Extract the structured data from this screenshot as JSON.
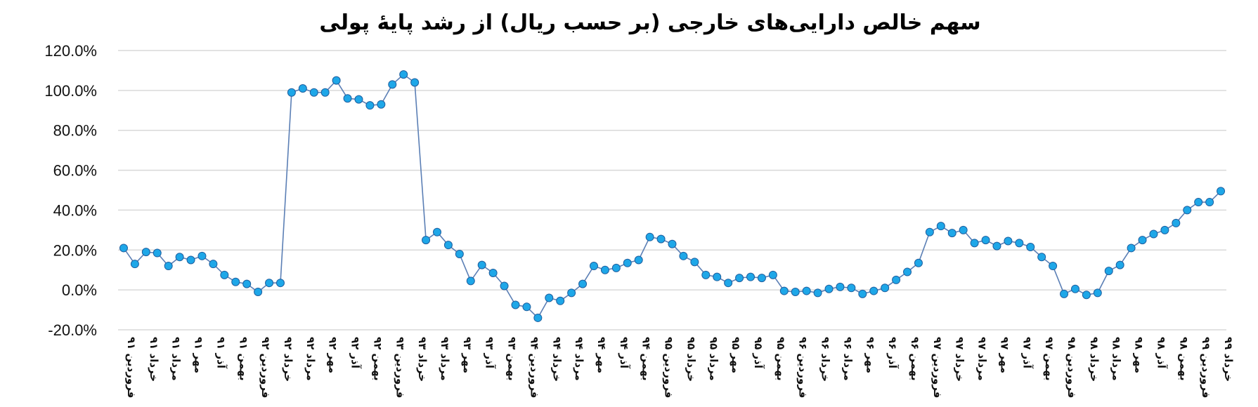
{
  "chart_data": {
    "type": "line",
    "title": "سهم خالص دارایی‌های خارجی (بر حسب ریال) از رشد پایهٔ پولی",
    "xlabel": "",
    "ylabel": "",
    "ylim": [
      -20,
      120
    ],
    "y_ticks": [
      "120.0%",
      "100.0%",
      "80.0%",
      "60.0%",
      "40.0%",
      "20.0%",
      "0.0%",
      "-20.0%"
    ],
    "y_tick_values": [
      120,
      100,
      80,
      60,
      40,
      20,
      0,
      -20
    ],
    "grid": true,
    "legend": "none",
    "colors": {
      "line": "#5b7fb5",
      "marker": "#1ea7e8",
      "grid": "#d9d9d9"
    },
    "x": [
      "فروردین ۹۱",
      "",
      "خرداد ۹۱",
      "",
      "مرداد ۹۱",
      "",
      "مهر ۹۱",
      "",
      "آذر ۹۱",
      "",
      "بهمن ۹۱",
      "",
      "فروردین ۹۲",
      "",
      "خرداد ۹۲",
      "",
      "مرداد ۹۲",
      "",
      "مهر ۹۲",
      "",
      "آذر ۹۲",
      "",
      "بهمن ۹۲",
      "",
      "فروردین ۹۳",
      "",
      "خرداد ۹۳",
      "",
      "مرداد ۹۳",
      "",
      "مهر ۹۳",
      "",
      "آذر ۹۳",
      "",
      "بهمن ۹۳",
      "",
      "فروردین ۹۴",
      "",
      "خرداد ۹۴",
      "",
      "مرداد ۹۴",
      "",
      "مهر ۹۴",
      "",
      "آذر ۹۴",
      "",
      "بهمن ۹۴",
      "",
      "فروردین ۹۵",
      "",
      "خرداد ۹۵",
      "",
      "مرداد ۹۵",
      "",
      "مهر ۹۵",
      "",
      "آذر ۹۵",
      "",
      "بهمن ۹۵",
      "",
      "فروردین ۹۶",
      "",
      "خرداد ۹۶",
      "",
      "مرداد ۹۶",
      "",
      "مهر ۹۶",
      "",
      "آذر ۹۶",
      "",
      "بهمن ۹۶",
      "",
      "فروردین ۹۷",
      "",
      "خرداد ۹۷",
      "",
      "مرداد ۹۷",
      "",
      "مهر ۹۷",
      "",
      "آذر ۹۷",
      "",
      "بهمن ۹۷",
      "",
      "فروردین ۹۸",
      "",
      "خرداد ۹۸",
      "",
      "مرداد ۹۸",
      "",
      "مهر ۹۸",
      "",
      "آذر ۹۸",
      "",
      "بهمن ۹۸",
      "",
      "فروردین ۹۹",
      "",
      "خرداد ۹۹"
    ],
    "values": [
      21,
      13,
      19,
      18.5,
      12,
      16.5,
      15,
      17,
      13,
      7.5,
      4,
      3,
      -1,
      3.5,
      3.5,
      99,
      101,
      99,
      99,
      105,
      96,
      95.5,
      92.5,
      93,
      103,
      108,
      104,
      25,
      29,
      22.5,
      18,
      4.5,
      12.5,
      8.5,
      2,
      -7.5,
      -8.5,
      -14,
      -4,
      -5.5,
      -1.5,
      3,
      12,
      10,
      11,
      13.5,
      15,
      26.5,
      25.5,
      23,
      17,
      14,
      7.5,
      6.5,
      3.5,
      6,
      6.5,
      6,
      7.5,
      -0.5,
      -1,
      -0.5,
      -1.5,
      0.5,
      1.5,
      1,
      -2,
      -0.5,
      1,
      5,
      9,
      13.5,
      29,
      32,
      28.5,
      30,
      23.5,
      25,
      22,
      24.5,
      23.5,
      21.5,
      16.5,
      12,
      -2,
      0.5,
      -2.5,
      -1.5,
      9.5,
      12.5,
      21,
      25,
      28,
      30,
      33.5,
      40,
      44,
      44,
      49.5
    ]
  }
}
